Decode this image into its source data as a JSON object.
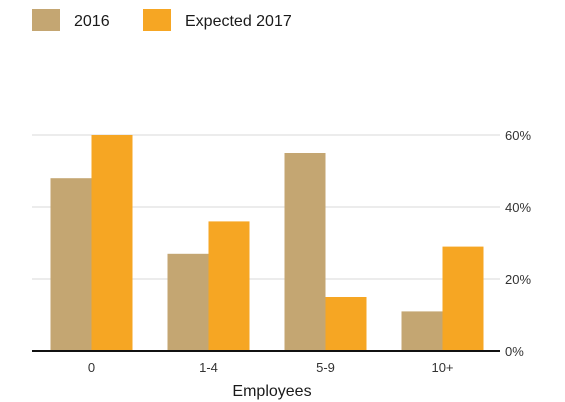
{
  "chart_data": {
    "type": "bar",
    "title": "",
    "xlabel": "Employees",
    "ylabel": "",
    "categories": [
      "0",
      "1-4",
      "5-9",
      "10+"
    ],
    "series": [
      {
        "name": "2016",
        "color": "#c4a672",
        "values": [
          48,
          27,
          55,
          11
        ]
      },
      {
        "name": "Expected 2017",
        "color": "#f6a623",
        "values": [
          60,
          36,
          15,
          29
        ]
      }
    ],
    "ylim": [
      0,
      60
    ],
    "yticks": [
      0,
      20,
      40,
      60
    ],
    "ytick_labels": [
      "0%",
      "20%",
      "40%",
      "60%"
    ],
    "y_axis_position": "right",
    "grid": true,
    "legend_position": "top-left"
  }
}
